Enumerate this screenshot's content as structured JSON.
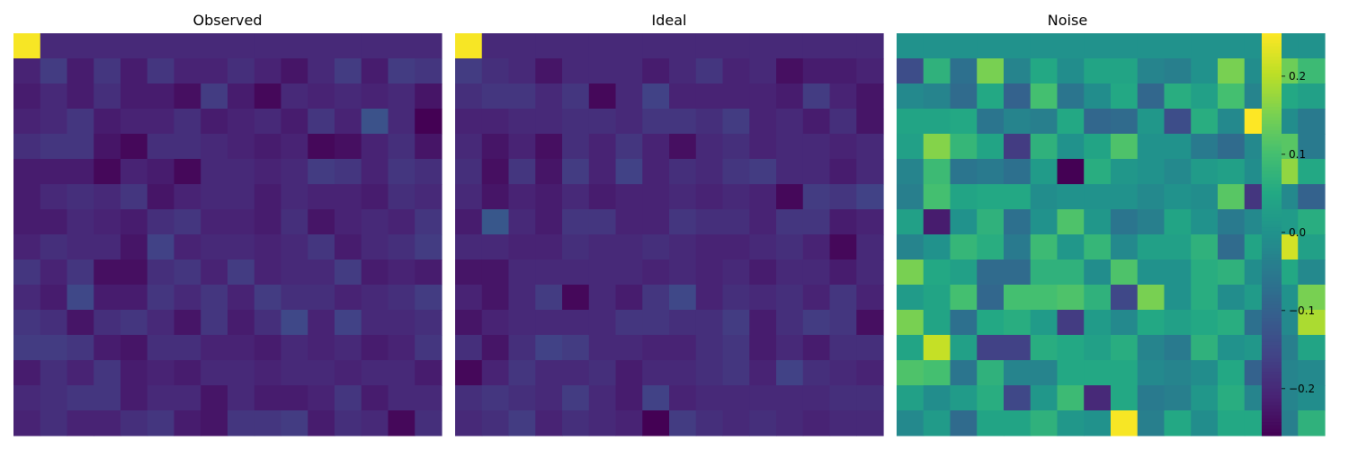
{
  "chart_data": [
    {
      "type": "heatmap",
      "title": "Observed",
      "colormap": "viridis",
      "vmin": -0.26,
      "vmax": 0.255,
      "xlabel": "",
      "ylabel": "",
      "ticks_shown": false,
      "values": [
        [
          0.25,
          -0.2,
          -0.2,
          -0.2,
          -0.2,
          -0.2,
          -0.2,
          -0.2,
          -0.2,
          -0.2,
          -0.2,
          -0.2,
          -0.2,
          -0.2,
          -0.2,
          -0.2
        ],
        [
          -0.21,
          -0.17,
          -0.22,
          -0.18,
          -0.22,
          -0.18,
          -0.21,
          -0.21,
          -0.19,
          -0.21,
          -0.23,
          -0.2,
          -0.17,
          -0.22,
          -0.17,
          -0.18
        ],
        [
          -0.22,
          -0.2,
          -0.22,
          -0.19,
          -0.22,
          -0.22,
          -0.24,
          -0.17,
          -0.22,
          -0.25,
          -0.2,
          -0.21,
          -0.2,
          -0.21,
          -0.2,
          -0.23
        ],
        [
          -0.21,
          -0.2,
          -0.18,
          -0.22,
          -0.21,
          -0.21,
          -0.19,
          -0.22,
          -0.21,
          -0.2,
          -0.22,
          -0.18,
          -0.21,
          -0.13,
          -0.2,
          -0.26
        ],
        [
          -0.19,
          -0.18,
          -0.18,
          -0.23,
          -0.25,
          -0.19,
          -0.19,
          -0.2,
          -0.21,
          -0.22,
          -0.21,
          -0.25,
          -0.24,
          -0.21,
          -0.19,
          -0.23
        ],
        [
          -0.22,
          -0.22,
          -0.22,
          -0.25,
          -0.21,
          -0.22,
          -0.25,
          -0.2,
          -0.2,
          -0.21,
          -0.2,
          -0.17,
          -0.18,
          -0.21,
          -0.18,
          -0.19
        ],
        [
          -0.22,
          -0.2,
          -0.19,
          -0.2,
          -0.18,
          -0.23,
          -0.21,
          -0.2,
          -0.2,
          -0.22,
          -0.2,
          -0.21,
          -0.21,
          -0.22,
          -0.19,
          -0.2
        ],
        [
          -0.22,
          -0.22,
          -0.2,
          -0.21,
          -0.22,
          -0.19,
          -0.18,
          -0.21,
          -0.21,
          -0.22,
          -0.19,
          -0.23,
          -0.21,
          -0.2,
          -0.21,
          -0.18
        ],
        [
          -0.21,
          -0.19,
          -0.2,
          -0.2,
          -0.23,
          -0.16,
          -0.21,
          -0.2,
          -0.2,
          -0.21,
          -0.2,
          -0.18,
          -0.22,
          -0.2,
          -0.19,
          -0.17
        ],
        [
          -0.18,
          -0.21,
          -0.18,
          -0.24,
          -0.24,
          -0.19,
          -0.18,
          -0.21,
          -0.17,
          -0.21,
          -0.2,
          -0.2,
          -0.17,
          -0.22,
          -0.21,
          -0.22
        ],
        [
          -0.2,
          -0.22,
          -0.15,
          -0.22,
          -0.22,
          -0.18,
          -0.2,
          -0.18,
          -0.21,
          -0.17,
          -0.19,
          -0.19,
          -0.21,
          -0.2,
          -0.19,
          -0.17
        ],
        [
          -0.18,
          -0.19,
          -0.23,
          -0.19,
          -0.18,
          -0.2,
          -0.23,
          -0.18,
          -0.22,
          -0.19,
          -0.15,
          -0.21,
          -0.16,
          -0.2,
          -0.2,
          -0.19
        ],
        [
          -0.17,
          -0.17,
          -0.18,
          -0.22,
          -0.23,
          -0.19,
          -0.19,
          -0.21,
          -0.21,
          -0.22,
          -0.2,
          -0.21,
          -0.2,
          -0.22,
          -0.21,
          -0.18
        ],
        [
          -0.22,
          -0.19,
          -0.21,
          -0.18,
          -0.22,
          -0.21,
          -0.22,
          -0.2,
          -0.2,
          -0.21,
          -0.2,
          -0.2,
          -0.21,
          -0.2,
          -0.2,
          -0.22
        ],
        [
          -0.2,
          -0.19,
          -0.18,
          -0.18,
          -0.22,
          -0.2,
          -0.2,
          -0.23,
          -0.2,
          -0.22,
          -0.22,
          -0.21,
          -0.18,
          -0.22,
          -0.2,
          -0.2
        ],
        [
          -0.21,
          -0.19,
          -0.21,
          -0.21,
          -0.19,
          -0.18,
          -0.22,
          -0.23,
          -0.18,
          -0.18,
          -0.17,
          -0.22,
          -0.19,
          -0.2,
          -0.25,
          -0.19
        ]
      ]
    },
    {
      "type": "heatmap",
      "title": "Ideal",
      "colormap": "viridis",
      "vmin": -0.26,
      "vmax": 0.255,
      "xlabel": "",
      "ylabel": "",
      "ticks_shown": false,
      "values": [
        [
          0.25,
          -0.2,
          -0.2,
          -0.2,
          -0.2,
          -0.2,
          -0.2,
          -0.2,
          -0.2,
          -0.2,
          -0.2,
          -0.2,
          -0.2,
          -0.2,
          -0.2,
          -0.2
        ],
        [
          -0.17,
          -0.19,
          -0.2,
          -0.23,
          -0.2,
          -0.2,
          -0.2,
          -0.22,
          -0.2,
          -0.18,
          -0.21,
          -0.2,
          -0.24,
          -0.22,
          -0.22,
          -0.21
        ],
        [
          -0.19,
          -0.18,
          -0.18,
          -0.2,
          -0.18,
          -0.25,
          -0.2,
          -0.16,
          -0.21,
          -0.21,
          -0.21,
          -0.21,
          -0.22,
          -0.17,
          -0.21,
          -0.23
        ],
        [
          -0.21,
          -0.21,
          -0.2,
          -0.2,
          -0.19,
          -0.19,
          -0.2,
          -0.18,
          -0.18,
          -0.19,
          -0.17,
          -0.21,
          -0.2,
          -0.22,
          -0.19,
          -0.23
        ],
        [
          -0.2,
          -0.23,
          -0.21,
          -0.24,
          -0.19,
          -0.21,
          -0.18,
          -0.21,
          -0.24,
          -0.2,
          -0.19,
          -0.21,
          -0.2,
          -0.2,
          -0.21,
          -0.2
        ],
        [
          -0.19,
          -0.24,
          -0.18,
          -0.23,
          -0.17,
          -0.21,
          -0.16,
          -0.21,
          -0.19,
          -0.2,
          -0.18,
          -0.17,
          -0.2,
          -0.2,
          -0.22,
          -0.2
        ],
        [
          -0.2,
          -0.23,
          -0.21,
          -0.22,
          -0.2,
          -0.22,
          -0.21,
          -0.21,
          -0.2,
          -0.21,
          -0.2,
          -0.21,
          -0.25,
          -0.17,
          -0.18,
          -0.16
        ],
        [
          -0.22,
          -0.12,
          -0.2,
          -0.22,
          -0.18,
          -0.18,
          -0.21,
          -0.21,
          -0.18,
          -0.19,
          -0.19,
          -0.21,
          -0.18,
          -0.18,
          -0.22,
          -0.21
        ],
        [
          -0.2,
          -0.2,
          -0.21,
          -0.21,
          -0.19,
          -0.2,
          -0.2,
          -0.19,
          -0.2,
          -0.21,
          -0.21,
          -0.2,
          -0.19,
          -0.21,
          -0.25,
          -0.2
        ],
        [
          -0.23,
          -0.23,
          -0.2,
          -0.2,
          -0.2,
          -0.2,
          -0.2,
          -0.21,
          -0.2,
          -0.21,
          -0.2,
          -0.22,
          -0.2,
          -0.2,
          -0.22,
          -0.2
        ],
        [
          -0.21,
          -0.23,
          -0.2,
          -0.17,
          -0.25,
          -0.2,
          -0.22,
          -0.18,
          -0.15,
          -0.21,
          -0.19,
          -0.2,
          -0.19,
          -0.21,
          -0.18,
          -0.21
        ],
        [
          -0.23,
          -0.21,
          -0.2,
          -0.2,
          -0.2,
          -0.2,
          -0.18,
          -0.18,
          -0.19,
          -0.19,
          -0.17,
          -0.22,
          -0.19,
          -0.17,
          -0.18,
          -0.24
        ],
        [
          -0.19,
          -0.23,
          -0.19,
          -0.16,
          -0.17,
          -0.2,
          -0.2,
          -0.21,
          -0.21,
          -0.19,
          -0.18,
          -0.22,
          -0.2,
          -0.22,
          -0.19,
          -0.19
        ],
        [
          -0.25,
          -0.21,
          -0.18,
          -0.2,
          -0.2,
          -0.19,
          -0.22,
          -0.2,
          -0.2,
          -0.19,
          -0.18,
          -0.21,
          -0.16,
          -0.19,
          -0.2,
          -0.21
        ],
        [
          -0.19,
          -0.18,
          -0.19,
          -0.2,
          -0.17,
          -0.2,
          -0.22,
          -0.16,
          -0.21,
          -0.2,
          -0.2,
          -0.2,
          -0.2,
          -0.2,
          -0.19,
          -0.19
        ],
        [
          -0.2,
          -0.19,
          -0.17,
          -0.21,
          -0.19,
          -0.2,
          -0.21,
          -0.26,
          -0.17,
          -0.19,
          -0.2,
          -0.19,
          -0.2,
          -0.21,
          -0.2,
          -0.2
        ]
      ]
    },
    {
      "type": "heatmap",
      "title": "Noise",
      "colormap": "viridis",
      "vmin": -0.26,
      "vmax": 0.255,
      "xlabel": "",
      "ylabel": "",
      "ticks_shown": false,
      "values": [
        [
          0.0,
          0.0,
          0.0,
          0.0,
          0.0,
          0.0,
          0.0,
          0.0,
          0.0,
          0.0,
          0.0,
          0.0,
          0.0,
          0.0,
          0.0,
          0.0
        ],
        [
          -0.14,
          0.07,
          -0.07,
          0.15,
          -0.03,
          0.05,
          -0.01,
          0.04,
          0.04,
          -0.03,
          -0.04,
          0.0,
          0.15,
          -0.01,
          0.14,
          0.09
        ],
        [
          -0.02,
          -0.03,
          -0.08,
          0.05,
          -0.1,
          0.1,
          -0.06,
          -0.01,
          0.05,
          -0.09,
          0.06,
          0.03,
          0.1,
          -0.03,
          0.05,
          0.03
        ],
        [
          0.04,
          0.04,
          0.05,
          -0.06,
          -0.03,
          -0.04,
          0.05,
          -0.09,
          -0.08,
          0.01,
          -0.14,
          0.06,
          -0.02,
          0.26,
          -0.01,
          -0.05
        ],
        [
          0.03,
          0.16,
          0.08,
          0.04,
          -0.17,
          0.07,
          0.0,
          0.04,
          0.11,
          0.0,
          0.0,
          -0.05,
          -0.08,
          -0.02,
          0.12,
          -0.05
        ],
        [
          -0.03,
          0.09,
          -0.06,
          -0.05,
          -0.07,
          0.02,
          -0.26,
          0.06,
          0.01,
          0.0,
          -0.02,
          0.02,
          0.03,
          -0.01,
          0.17,
          0.05
        ],
        [
          -0.04,
          0.1,
          0.04,
          0.05,
          0.05,
          -0.01,
          0.0,
          0.0,
          0.0,
          -0.02,
          0.0,
          -0.01,
          0.12,
          -0.18,
          -0.02,
          -0.1
        ],
        [
          0.03,
          -0.22,
          0.0,
          0.07,
          -0.07,
          0.0,
          0.11,
          0.01,
          -0.06,
          -0.04,
          0.04,
          0.0,
          -0.05,
          -0.02,
          0.02,
          0.06
        ],
        [
          -0.03,
          0.0,
          0.08,
          0.06,
          -0.05,
          0.09,
          0.01,
          0.08,
          -0.02,
          0.03,
          0.03,
          0.07,
          -0.08,
          0.04,
          0.22,
          0.03
        ],
        [
          0.15,
          0.05,
          0.03,
          -0.08,
          -0.08,
          0.07,
          0.07,
          -0.01,
          0.11,
          0.0,
          0.0,
          0.06,
          0.07,
          -0.01,
          0.05,
          -0.02
        ],
        [
          0.02,
          0.04,
          0.1,
          -0.09,
          0.1,
          0.1,
          0.11,
          0.07,
          -0.15,
          0.15,
          0.0,
          0.06,
          -0.01,
          0.02,
          0.0,
          0.15
        ],
        [
          0.15,
          0.04,
          -0.07,
          0.05,
          0.06,
          0.02,
          -0.17,
          0.02,
          -0.02,
          0.05,
          0.03,
          0.05,
          0.06,
          -0.07,
          -0.02,
          0.19
        ],
        [
          0.04,
          0.21,
          0.03,
          -0.16,
          -0.16,
          0.06,
          0.05,
          0.03,
          0.06,
          -0.03,
          -0.05,
          0.07,
          0.0,
          0.01,
          -0.04,
          0.04
        ],
        [
          0.11,
          0.1,
          -0.06,
          0.07,
          -0.03,
          -0.03,
          0.05,
          0.05,
          0.05,
          -0.02,
          -0.03,
          -0.01,
          0.05,
          -0.1,
          -0.03,
          -0.02
        ],
        [
          0.03,
          -0.01,
          0.02,
          0.06,
          -0.15,
          0.01,
          0.09,
          -0.2,
          0.05,
          -0.05,
          -0.04,
          0.01,
          0.06,
          -0.03,
          -0.03,
          -0.01
        ],
        [
          -0.02,
          0.02,
          -0.08,
          0.04,
          0.04,
          0.07,
          0.01,
          0.0,
          0.25,
          -0.04,
          0.05,
          -0.01,
          0.05,
          0.05,
          -0.04,
          0.07
        ]
      ]
    }
  ],
  "colorbar": {
    "vmin": -0.26,
    "vmax": 0.255,
    "ticks": [
      0.2,
      0.1,
      0.0,
      -0.1,
      -0.2
    ],
    "tick_labels": [
      "0.2",
      "0.1",
      "0.0",
      "−0.1",
      "−0.2"
    ]
  }
}
